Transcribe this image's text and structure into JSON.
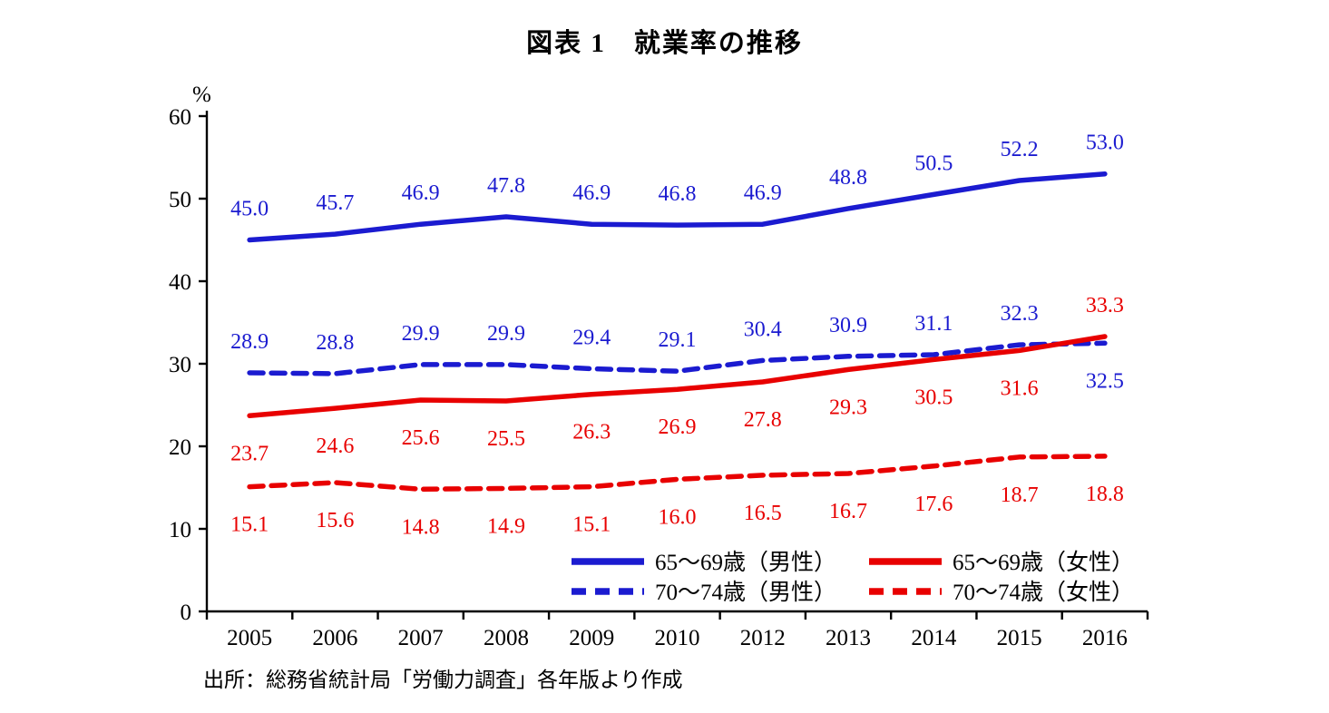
{
  "chart_data": {
    "type": "line",
    "title": "図表 1　就業率の推移",
    "unit_label": "%",
    "xlabel": "",
    "ylabel": "%",
    "categories": [
      "2005",
      "2006",
      "2007",
      "2008",
      "2009",
      "2010",
      "2012",
      "2013",
      "2014",
      "2015",
      "2016"
    ],
    "ylim": [
      0,
      60
    ],
    "yticks": [
      0,
      10,
      20,
      30,
      40,
      50,
      60
    ],
    "grid": false,
    "legend_position": "inside-bottom-center",
    "legend_order": [
      0,
      2,
      1,
      3
    ],
    "series": [
      {
        "name": "65〜69歳（男性）",
        "color": "#1b1bd0",
        "dash": false,
        "label_side": "above",
        "label_side_overrides": {},
        "values": [
          45.0,
          45.7,
          46.9,
          47.8,
          46.9,
          46.8,
          46.9,
          48.8,
          50.5,
          52.2,
          53.0
        ]
      },
      {
        "name": "70〜74歳（男性）",
        "color": "#1b1bd0",
        "dash": true,
        "label_side": "above",
        "label_side_overrides": {
          "10": "below"
        },
        "values": [
          28.9,
          28.8,
          29.9,
          29.9,
          29.4,
          29.1,
          30.4,
          30.9,
          31.1,
          32.3,
          32.5
        ]
      },
      {
        "name": "65〜69歳（女性）",
        "color": "#e80000",
        "dash": false,
        "label_side": "below",
        "label_side_overrides": {
          "10": "above"
        },
        "values": [
          23.7,
          24.6,
          25.6,
          25.5,
          26.3,
          26.9,
          27.8,
          29.3,
          30.5,
          31.6,
          33.3
        ]
      },
      {
        "name": "70〜74歳（女性）",
        "color": "#e80000",
        "dash": true,
        "label_side": "below",
        "label_side_overrides": {},
        "values": [
          15.1,
          15.6,
          14.8,
          14.9,
          15.1,
          16.0,
          16.5,
          16.7,
          17.6,
          18.7,
          18.8
        ]
      }
    ],
    "source": "出所：総務省統計局「労働力調査」各年版より作成"
  }
}
